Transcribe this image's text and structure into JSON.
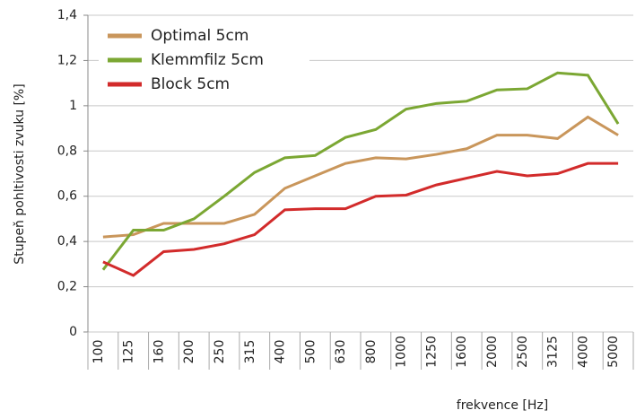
{
  "chart_data": {
    "type": "line",
    "x_label": "frekvence [Hz]",
    "y_label": "Stupeň pohltivosti zvuku [%]",
    "categories": [
      "100",
      "125",
      "160",
      "200",
      "250",
      "315",
      "400",
      "500",
      "630",
      "800",
      "1000",
      "1250",
      "1600",
      "2000",
      "2500",
      "3125",
      "4000",
      "5000"
    ],
    "series": [
      {
        "name": "Optimal 5cm",
        "color": "#c9965b",
        "values": [
          0.42,
          0.43,
          0.48,
          0.48,
          0.48,
          0.52,
          0.635,
          0.69,
          0.745,
          0.77,
          0.765,
          0.785,
          0.81,
          0.87,
          0.87,
          0.855,
          0.95,
          0.87
        ]
      },
      {
        "name": "Klemmfilz 5cm",
        "color": "#7ba733",
        "values": [
          0.275,
          0.45,
          0.45,
          0.5,
          0.6,
          0.705,
          0.77,
          0.78,
          0.86,
          0.895,
          0.985,
          1.01,
          1.02,
          1.07,
          1.075,
          1.145,
          1.135,
          0.92
        ]
      },
      {
        "name": "Block 5cm",
        "color": "#d22b2b",
        "values": [
          0.31,
          0.25,
          0.355,
          0.365,
          0.39,
          0.43,
          0.54,
          0.545,
          0.545,
          0.6,
          0.605,
          0.65,
          0.68,
          0.71,
          0.69,
          0.7,
          0.745,
          0.745
        ]
      }
    ],
    "ylim": [
      0,
      1.4
    ],
    "yticks": [
      0,
      {
        "value": 0.2,
        "label": "0,2"
      },
      {
        "value": 0.4,
        "label": "0,4"
      },
      {
        "value": 0.6,
        "label": "0,6"
      },
      {
        "value": 0.8,
        "label": "0,8"
      },
      1,
      {
        "value": 1.2,
        "label": "1,2"
      },
      {
        "value": 1.4,
        "label": "1,4"
      }
    ],
    "grid": true,
    "legend": "upper left"
  }
}
